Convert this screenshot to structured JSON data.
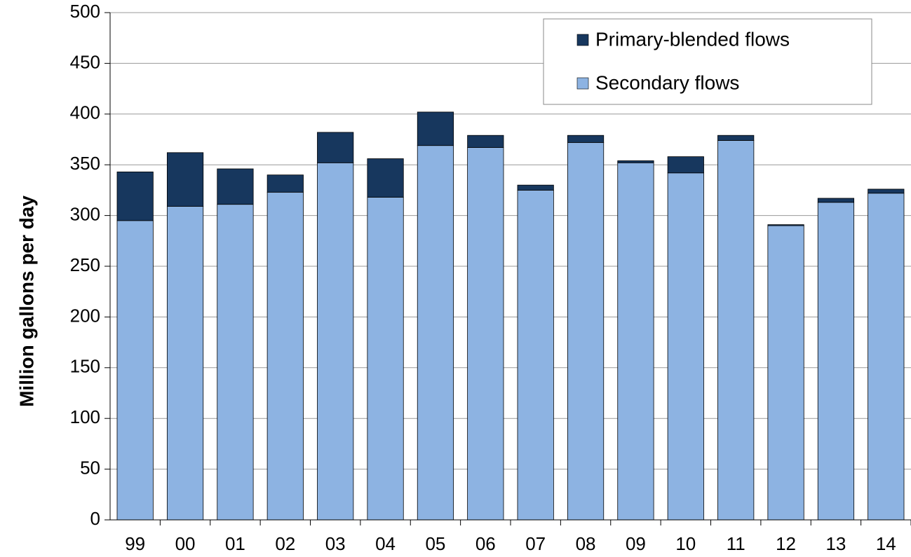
{
  "chart_data": {
    "type": "stacked_bar",
    "y_label": "Million gallons per day",
    "categories": [
      "99",
      "00",
      "01",
      "02",
      "03",
      "04",
      "05",
      "06",
      "07",
      "08",
      "09",
      "10",
      "11",
      "12",
      "13",
      "14"
    ],
    "series": [
      {
        "name": "Secondary flows",
        "color": "#8db3e2",
        "values": [
          295,
          309,
          311,
          323,
          352,
          318,
          369,
          367,
          325,
          372,
          352,
          342,
          374,
          290,
          313,
          322
        ]
      },
      {
        "name": "Primary-blended flows",
        "color": "#17375e",
        "values": [
          48,
          53,
          35,
          17,
          30,
          38,
          33,
          12,
          5,
          7,
          2,
          16,
          5,
          1,
          4,
          4
        ]
      }
    ],
    "ylim": [
      0,
      500
    ],
    "yticks": [
      0,
      50,
      100,
      150,
      200,
      250,
      300,
      350,
      400,
      450,
      500
    ],
    "grid": true,
    "legend": "upper right"
  }
}
